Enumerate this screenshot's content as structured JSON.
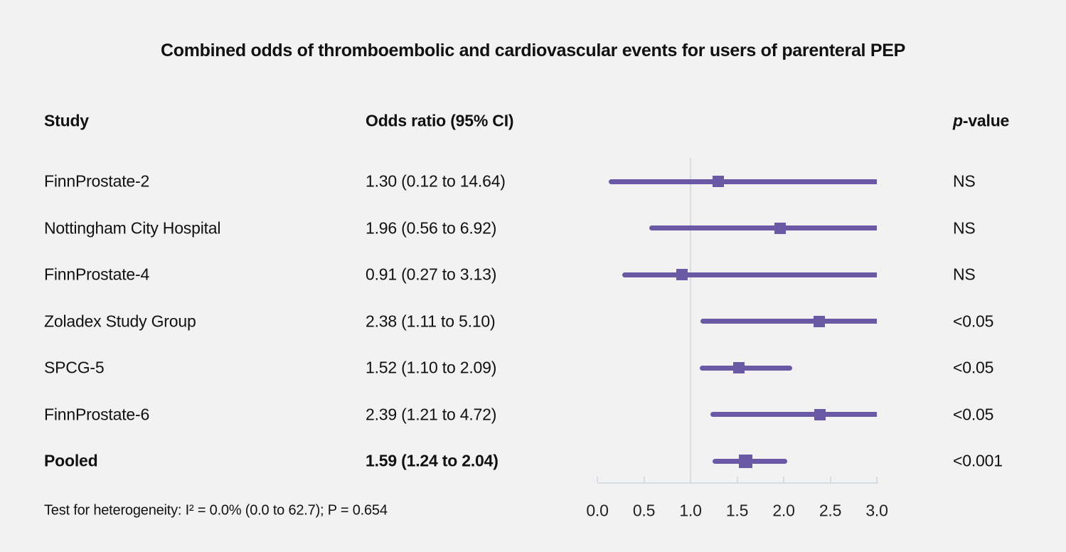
{
  "chart_data": {
    "type": "forest",
    "title": "Combined odds of thromboembolic and cardiovascular events for users of parenteral PEP",
    "columns": {
      "study": "Study",
      "odds_ratio": "Odds ratio (95% CI)",
      "p_value_prefix": "p",
      "p_value_suffix": "-value"
    },
    "rows": [
      {
        "study": "FinnProstate-2",
        "or_text": "1.30 (0.12 to 14.64)",
        "or": 1.3,
        "ci_low": 0.12,
        "ci_high": 14.64,
        "p": "NS",
        "pooled": false
      },
      {
        "study": "Nottingham City Hospital",
        "or_text": "1.96 (0.56 to 6.92)",
        "or": 1.96,
        "ci_low": 0.56,
        "ci_high": 6.92,
        "p": "NS",
        "pooled": false
      },
      {
        "study": "FinnProstate-4",
        "or_text": "0.91 (0.27 to 3.13)",
        "or": 0.91,
        "ci_low": 0.27,
        "ci_high": 3.13,
        "p": "NS",
        "pooled": false
      },
      {
        "study": "Zoladex Study Group",
        "or_text": "2.38 (1.11 to 5.10)",
        "or": 2.38,
        "ci_low": 1.11,
        "ci_high": 5.1,
        "p": "<0.05",
        "pooled": false
      },
      {
        "study": "SPCG-5",
        "or_text": "1.52 (1.10 to 2.09)",
        "or": 1.52,
        "ci_low": 1.1,
        "ci_high": 2.09,
        "p": "<0.05",
        "pooled": false
      },
      {
        "study": "FinnProstate-6",
        "or_text": "2.39 (1.21 to 4.72)",
        "or": 2.39,
        "ci_low": 1.21,
        "ci_high": 4.72,
        "p": "<0.05",
        "pooled": false
      },
      {
        "study": "Pooled",
        "or_text": "1.59 (1.24 to 2.04)",
        "or": 1.59,
        "ci_low": 1.24,
        "ci_high": 2.04,
        "p": "<0.001",
        "pooled": true
      }
    ],
    "x_axis": {
      "tick_labels": [
        "0.0",
        "0.5",
        "1.0",
        "1.5",
        "2.0",
        "2.5",
        "3.0"
      ],
      "tick_values": [
        0.0,
        0.5,
        1.0,
        1.5,
        2.0,
        2.5,
        3.0
      ],
      "min": 0.0,
      "max": 3.0,
      "reference_line": 1.0
    },
    "footnote": "Test for heterogeneity: I² = 0.0% (0.0 to 62.7); P = 0.654",
    "colors": {
      "accent_purple": "#6a5aa6",
      "reference_line": "#d8dde3",
      "axis_line": "#d6dce1",
      "background": "#f2f2f2",
      "text": "#111111"
    }
  }
}
